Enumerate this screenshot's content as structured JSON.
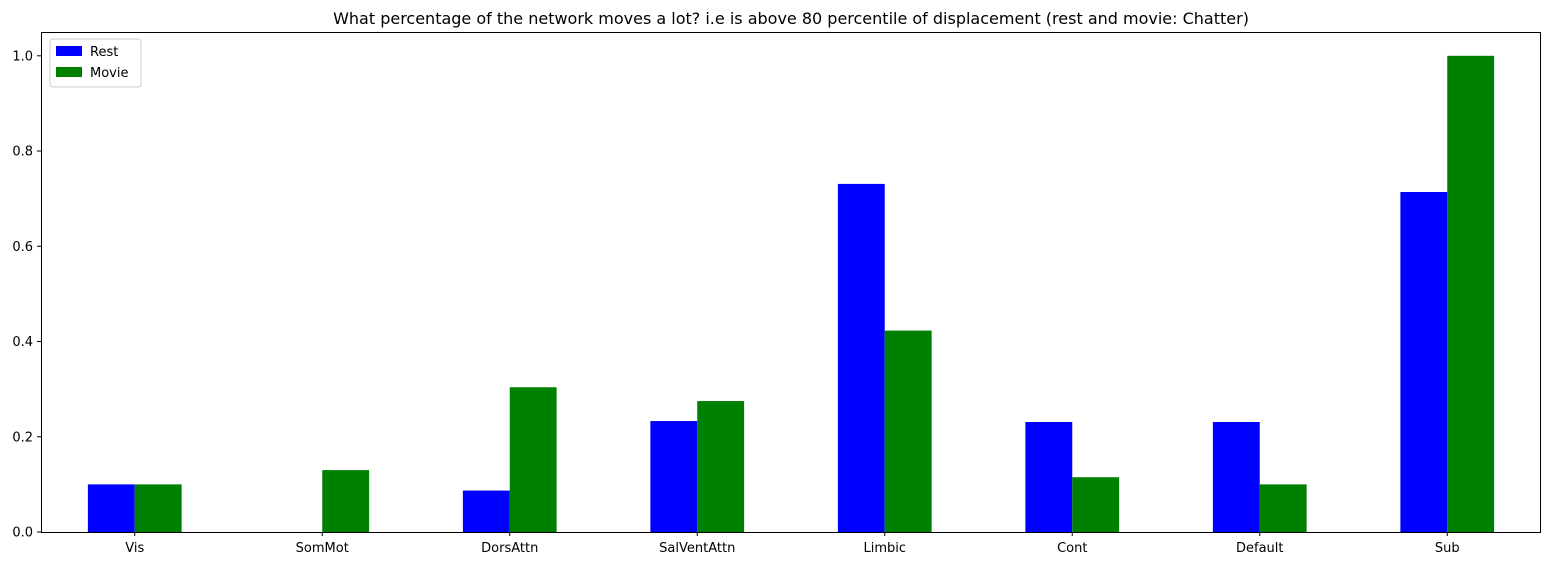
{
  "chart_data": {
    "type": "bar",
    "title": "What percentage of the network moves a lot? i.e is above 80 percentile of displacement (rest and movie: Chatter)",
    "xlabel": "",
    "ylabel": "",
    "categories": [
      "Vis",
      "SomMot",
      "DorsAttn",
      "SalVentAttn",
      "Limbic",
      "Cont",
      "Default",
      "Sub"
    ],
    "series": [
      {
        "name": "Rest",
        "color": "#0000ff",
        "values": [
          0.1,
          0.0,
          0.087,
          0.233,
          0.731,
          0.231,
          0.231,
          0.714
        ]
      },
      {
        "name": "Movie",
        "color": "#008000",
        "values": [
          0.1,
          0.13,
          0.304,
          0.275,
          0.423,
          0.115,
          0.1,
          1.0
        ]
      }
    ],
    "ylim": [
      0,
      1.05
    ],
    "yticks": [
      0.0,
      0.2,
      0.4,
      0.6,
      0.8,
      1.0
    ],
    "ytick_labels": [
      "0.0",
      "0.2",
      "0.4",
      "0.6",
      "0.8",
      "1.0"
    ],
    "grid": false,
    "legend_position": "top-left"
  }
}
